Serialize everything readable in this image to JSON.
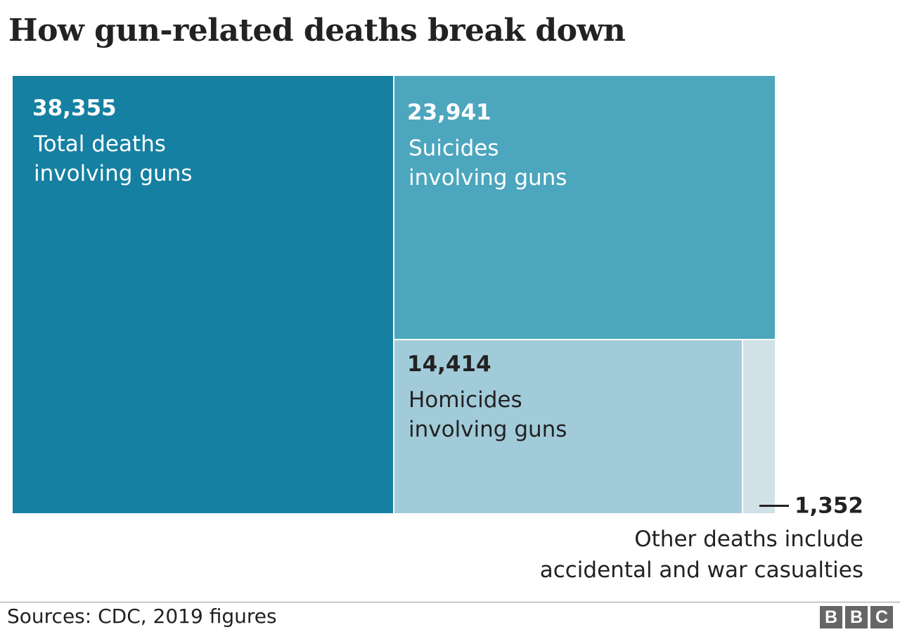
{
  "title": "How gun-related deaths break down",
  "chart_data": {
    "type": "treemap",
    "total": {
      "name": "Total deaths involving guns",
      "value": 38355,
      "value_label": "38,355",
      "label_lines": [
        "Total deaths",
        "involving guns"
      ],
      "color": "#1580a1"
    },
    "parts": [
      {
        "name": "Suicides involving guns",
        "value": 23941,
        "value_label": "23,941",
        "label_lines": [
          "Suicides",
          "involving guns"
        ],
        "color": "#4ca6bd"
      },
      {
        "name": "Homicides involving guns",
        "value": 14414,
        "value_label": "14,414",
        "label_lines": [
          "Homicides",
          "involving guns"
        ],
        "color": "#a2cbd9"
      },
      {
        "name": "Other deaths",
        "value": 1352,
        "value_label": "1,352",
        "color": "#d0e1e7"
      }
    ],
    "other_note": [
      "Other deaths include",
      "accidental and war casualties"
    ]
  },
  "footer": {
    "source": "Sources: CDC, 2019 figures",
    "logo": [
      "B",
      "B",
      "C"
    ]
  }
}
